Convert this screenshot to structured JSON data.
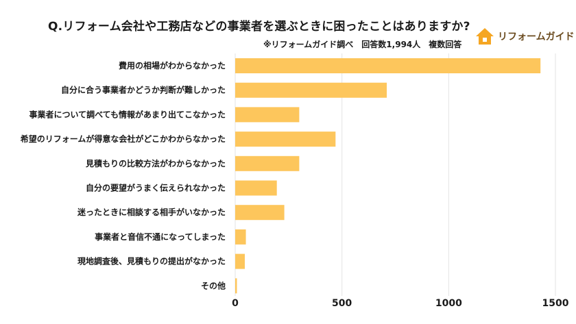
{
  "header": {
    "title": "Q.リフォーム会社や工務店などの事業者を選ぶときに困ったことはありますか?",
    "note": "※リフォームガイド調べ　回答数1,994人　複数回答",
    "logo_text": "リフォームガイド"
  },
  "colors": {
    "bar": "#FDC65C",
    "grid": "#E3E3E3",
    "logo_house": "#F5A623"
  },
  "chart_data": {
    "type": "bar",
    "orientation": "horizontal",
    "title": "Q.リフォーム会社や工務店などの事業者を選ぶときに困ったことはありますか?",
    "categories": [
      "費用の相場がわからなかった",
      "自分に合う事業者かどうか判断が難しかった",
      "事業者について調べても情報があまり出てこなかった",
      "希望のリフォームが得意な会社がどこかわからなかった",
      "見積もりの比較方法がわからなかった",
      "自分の要望がうまく伝えられなかった",
      "迷ったときに相談する相手がいなかった",
      "事業者と音信不通になってしまった",
      "現地調査後、見積もりの提出がなかった",
      "その他"
    ],
    "values": [
      1430,
      710,
      300,
      470,
      300,
      195,
      230,
      50,
      45,
      8
    ],
    "xlim": [
      0,
      1500
    ],
    "xticks": [
      0,
      500,
      1000,
      1500
    ],
    "xtick_labels": [
      "0",
      "500",
      "1000",
      "1500"
    ],
    "grid": "vertical",
    "legend": "none"
  }
}
